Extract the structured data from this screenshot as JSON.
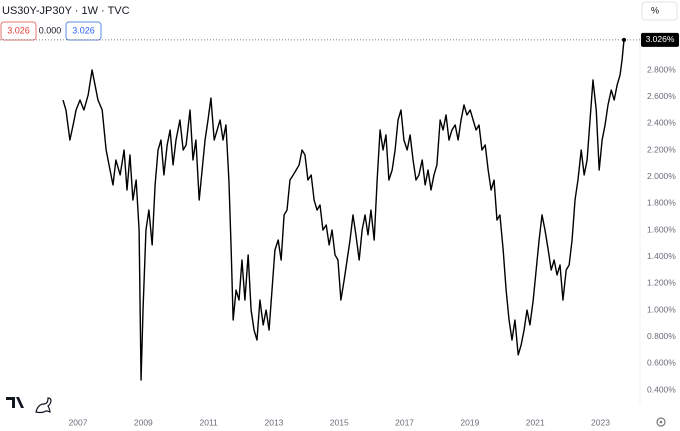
{
  "chart_data": {
    "type": "line",
    "title": "US30Y-JP30Y · 1W · TVC",
    "price_boxes": [
      "3.026",
      "0.000",
      "3.026"
    ],
    "scale_button": "%",
    "last_price_label": "3.026%",
    "color": "#000000",
    "x": [
      2006.54,
      2006.63,
      2006.75,
      2006.85,
      2006.94,
      2007.06,
      2007.18,
      2007.31,
      2007.43,
      2007.52,
      2007.61,
      2007.74,
      2007.86,
      2007.98,
      2008.07,
      2008.16,
      2008.29,
      2008.41,
      2008.5,
      2008.59,
      2008.68,
      2008.78,
      2008.87,
      2008.93,
      2008.99,
      2009.08,
      2009.17,
      2009.27,
      2009.36,
      2009.45,
      2009.54,
      2009.63,
      2009.73,
      2009.82,
      2009.91,
      2010.0,
      2010.12,
      2010.22,
      2010.31,
      2010.43,
      2010.52,
      2010.61,
      2010.71,
      2010.8,
      2010.89,
      2010.98,
      2011.07,
      2011.17,
      2011.26,
      2011.35,
      2011.44,
      2011.53,
      2011.62,
      2011.69,
      2011.75,
      2011.84,
      2011.93,
      2012.02,
      2012.11,
      2012.21,
      2012.3,
      2012.39,
      2012.48,
      2012.57,
      2012.67,
      2012.76,
      2012.85,
      2012.94,
      2013.03,
      2013.13,
      2013.22,
      2013.31,
      2013.4,
      2013.49,
      2013.59,
      2013.68,
      2013.77,
      2013.86,
      2013.95,
      2014.04,
      2014.14,
      2014.23,
      2014.32,
      2014.41,
      2014.5,
      2014.6,
      2014.69,
      2014.78,
      2014.87,
      2014.96,
      2015.05,
      2015.15,
      2015.24,
      2015.33,
      2015.42,
      2015.51,
      2015.61,
      2015.7,
      2015.79,
      2015.88,
      2015.97,
      2016.07,
      2016.16,
      2016.25,
      2016.34,
      2016.43,
      2016.52,
      2016.62,
      2016.71,
      2016.8,
      2016.89,
      2016.98,
      2017.08,
      2017.17,
      2017.26,
      2017.35,
      2017.44,
      2017.54,
      2017.63,
      2017.72,
      2017.81,
      2017.9,
      2017.99,
      2018.09,
      2018.18,
      2018.27,
      2018.36,
      2018.45,
      2018.55,
      2018.64,
      2018.73,
      2018.82,
      2018.91,
      2019.01,
      2019.1,
      2019.19,
      2019.28,
      2019.37,
      2019.47,
      2019.56,
      2019.65,
      2019.74,
      2019.83,
      2019.92,
      2020.02,
      2020.11,
      2020.2,
      2020.29,
      2020.38,
      2020.48,
      2020.57,
      2020.66,
      2020.75,
      2020.84,
      2020.94,
      2021.03,
      2021.12,
      2021.21,
      2021.3,
      2021.4,
      2021.49,
      2021.58,
      2021.67,
      2021.76,
      2021.85,
      2021.95,
      2022.04,
      2022.13,
      2022.22,
      2022.31,
      2022.41,
      2022.5,
      2022.59,
      2022.68,
      2022.77,
      2022.87,
      2022.96,
      2023.05,
      2023.14,
      2023.23,
      2023.33,
      2023.42,
      2023.51,
      2023.6,
      2023.66,
      2023.72
    ],
    "values": [
      2.575,
      2.5,
      2.275,
      2.388,
      2.5,
      2.575,
      2.5,
      2.613,
      2.8,
      2.688,
      2.575,
      2.5,
      2.2,
      2.05,
      1.938,
      2.125,
      2.013,
      2.2,
      1.9,
      2.163,
      1.825,
      1.975,
      1.6,
      0.475,
      1.0,
      1.6,
      1.75,
      1.488,
      1.938,
      2.2,
      2.275,
      2.013,
      2.238,
      2.35,
      2.088,
      2.275,
      2.425,
      2.2,
      2.238,
      2.5,
      2.125,
      2.275,
      1.825,
      2.05,
      2.275,
      2.425,
      2.59,
      2.275,
      2.35,
      2.425,
      2.275,
      2.388,
      1.975,
      1.45,
      0.925,
      1.15,
      1.075,
      1.375,
      1.075,
      1.413,
      1.0,
      0.85,
      0.775,
      1.075,
      0.888,
      1.0,
      0.85,
      1.15,
      1.45,
      1.525,
      1.375,
      1.713,
      1.75,
      1.975,
      2.013,
      2.05,
      2.088,
      2.2,
      2.163,
      1.975,
      2.013,
      1.825,
      1.75,
      1.788,
      1.6,
      1.638,
      1.488,
      1.6,
      1.413,
      1.375,
      1.075,
      1.225,
      1.375,
      1.525,
      1.713,
      1.563,
      1.375,
      1.6,
      1.713,
      1.563,
      1.75,
      1.525,
      1.975,
      2.35,
      2.2,
      2.313,
      1.975,
      2.05,
      2.2,
      2.425,
      2.5,
      2.275,
      2.2,
      2.313,
      2.125,
      1.975,
      2.013,
      2.125,
      1.938,
      2.05,
      1.9,
      2.013,
      2.088,
      2.425,
      2.35,
      2.463,
      2.275,
      2.35,
      2.388,
      2.275,
      2.425,
      2.538,
      2.463,
      2.5,
      2.425,
      2.35,
      2.388,
      2.2,
      2.238,
      2.05,
      1.9,
      1.975,
      1.675,
      1.713,
      1.45,
      1.15,
      0.925,
      0.775,
      0.925,
      0.663,
      0.738,
      0.85,
      1.0,
      0.888,
      1.075,
      1.3,
      1.525,
      1.713,
      1.6,
      1.45,
      1.3,
      1.375,
      1.263,
      1.338,
      1.075,
      1.3,
      1.338,
      1.525,
      1.825,
      1.975,
      2.2,
      2.013,
      2.125,
      2.425,
      2.725,
      2.5,
      2.05,
      2.275,
      2.388,
      2.538,
      2.65,
      2.575,
      2.688,
      2.763,
      2.875,
      3.026
    ],
    "xlim": [
      2004.61,
      2024.21
    ],
    "xticks": [
      2007,
      2009,
      2011,
      2013,
      2015,
      2017,
      2019,
      2021,
      2023
    ],
    "ylim": [
      0.29,
      3.1
    ],
    "yticks": [
      {
        "value": 0.4,
        "label": "0.400%"
      },
      {
        "value": 0.6,
        "label": "0.600%"
      },
      {
        "value": 0.8,
        "label": "0.800%"
      },
      {
        "value": 1.0,
        "label": "1.000%"
      },
      {
        "value": 1.2,
        "label": "1.200%"
      },
      {
        "value": 1.4,
        "label": "1.400%"
      },
      {
        "value": 1.6,
        "label": "1.600%"
      },
      {
        "value": 1.8,
        "label": "1.800%"
      },
      {
        "value": 2.0,
        "label": "2.000%"
      },
      {
        "value": 2.2,
        "label": "2.200%"
      },
      {
        "value": 2.4,
        "label": "2.400%"
      },
      {
        "value": 2.6,
        "label": "2.600%"
      },
      {
        "value": 2.8,
        "label": "2.800%"
      }
    ],
    "grid": false
  }
}
